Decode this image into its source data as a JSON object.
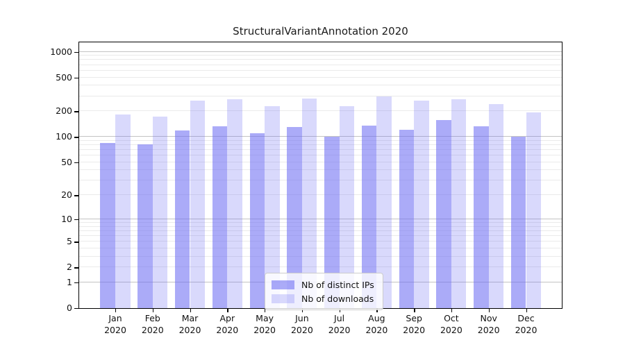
{
  "chart_data": {
    "type": "bar",
    "title": "StructuralVariantAnnotation 2020",
    "year_label": "2020",
    "categories": [
      "Jan",
      "Feb",
      "Mar",
      "Apr",
      "May",
      "Jun",
      "Jul",
      "Aug",
      "Sep",
      "Oct",
      "Nov",
      "Dec"
    ],
    "series": [
      {
        "name": "Nb of distinct IPs",
        "color": "rgba(105,105,242,0.56)",
        "values": [
          85,
          82,
          118,
          133,
          111,
          132,
          101,
          135,
          121,
          157,
          134,
          101
        ]
      },
      {
        "name": "Nb of downloads",
        "color": "rgba(105,105,242,0.25)",
        "values": [
          183,
          174,
          269,
          278,
          229,
          284,
          232,
          301,
          267,
          275,
          243,
          195
        ]
      }
    ],
    "y_axis": {
      "scale": "log1p",
      "ticks": [
        0,
        1,
        2,
        5,
        10,
        20,
        50,
        100,
        200,
        500,
        1000
      ],
      "ylim": [
        0,
        1288
      ],
      "grid": true
    },
    "x_axis": {
      "tick_label_format": "month over year"
    },
    "legend": {
      "position": "lower-center",
      "items": [
        "Nb of distinct IPs",
        "Nb of downloads"
      ]
    },
    "colors": {
      "grid_minor": "#eaeaea",
      "grid_major": "#c3c3c3",
      "axis": "#000000",
      "background": "#ffffff"
    }
  }
}
